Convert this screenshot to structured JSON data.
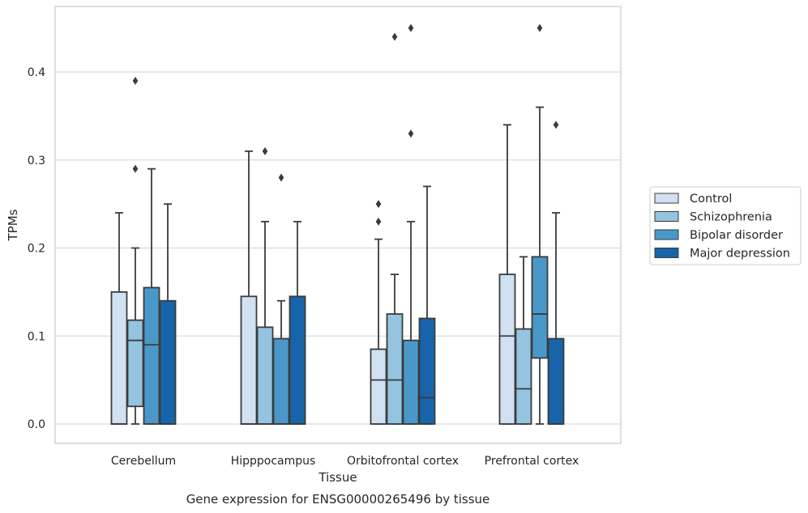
{
  "caption": "Gene expression for ENSG00000265496 by tissue",
  "chart_data": {
    "type": "boxplot",
    "xlabel": "Tissue",
    "ylabel": "TPMs",
    "ylim": [
      -0.022,
      0.475
    ],
    "yticks": [
      0.0,
      0.1,
      0.2,
      0.3,
      0.4
    ],
    "ytick_labels": [
      "0.0",
      "0.1",
      "0.2",
      "0.3",
      "0.4"
    ],
    "grid": "horizontal",
    "legend_position": "right",
    "categories": [
      "Cerebellum",
      "Hipppocampus",
      "Orbitofrontal cortex",
      "Prefrontal cortex"
    ],
    "series": [
      {
        "name": "Control",
        "color": "#d0e1f2",
        "boxes": [
          {
            "min": 0.0,
            "q1": 0.0,
            "median": 0.0,
            "q3": 0.15,
            "max": 0.24,
            "outliers": []
          },
          {
            "min": 0.0,
            "q1": 0.0,
            "median": 0.0,
            "q3": 0.145,
            "max": 0.31,
            "outliers": []
          },
          {
            "min": 0.0,
            "q1": 0.0,
            "median": 0.05,
            "q3": 0.085,
            "max": 0.21,
            "outliers": [
              0.23,
              0.25
            ]
          },
          {
            "min": 0.0,
            "q1": 0.0,
            "median": 0.1,
            "q3": 0.17,
            "max": 0.34,
            "outliers": []
          }
        ]
      },
      {
        "name": "Schizophrenia",
        "color": "#94c4df",
        "boxes": [
          {
            "min": 0.0,
            "q1": 0.02,
            "median": 0.095,
            "q3": 0.118,
            "max": 0.2,
            "outliers": [
              0.29,
              0.39
            ]
          },
          {
            "min": 0.0,
            "q1": 0.0,
            "median": 0.0,
            "q3": 0.11,
            "max": 0.23,
            "outliers": [
              0.31
            ]
          },
          {
            "min": 0.0,
            "q1": 0.0,
            "median": 0.05,
            "q3": 0.125,
            "max": 0.17,
            "outliers": [
              0.44
            ]
          },
          {
            "min": 0.0,
            "q1": 0.0,
            "median": 0.04,
            "q3": 0.108,
            "max": 0.19,
            "outliers": []
          }
        ]
      },
      {
        "name": "Bipolar disorder",
        "color": "#4a98c9",
        "boxes": [
          {
            "min": 0.0,
            "q1": 0.0,
            "median": 0.09,
            "q3": 0.155,
            "max": 0.29,
            "outliers": []
          },
          {
            "min": 0.0,
            "q1": 0.0,
            "median": 0.0,
            "q3": 0.097,
            "max": 0.14,
            "outliers": [
              0.28
            ]
          },
          {
            "min": 0.0,
            "q1": 0.0,
            "median": 0.0,
            "q3": 0.095,
            "max": 0.23,
            "outliers": [
              0.33,
              0.45
            ]
          },
          {
            "min": 0.0,
            "q1": 0.075,
            "median": 0.125,
            "q3": 0.19,
            "max": 0.36,
            "outliers": [
              0.45
            ]
          }
        ]
      },
      {
        "name": "Major depression",
        "color": "#1764ab",
        "boxes": [
          {
            "min": 0.0,
            "q1": 0.0,
            "median": 0.0,
            "q3": 0.14,
            "max": 0.25,
            "outliers": []
          },
          {
            "min": 0.0,
            "q1": 0.0,
            "median": 0.0,
            "q3": 0.145,
            "max": 0.23,
            "outliers": []
          },
          {
            "min": 0.0,
            "q1": 0.0,
            "median": 0.03,
            "q3": 0.12,
            "max": 0.27,
            "outliers": []
          },
          {
            "min": 0.0,
            "q1": 0.0,
            "median": 0.0,
            "q3": 0.097,
            "max": 0.24,
            "outliers": [
              0.34
            ]
          }
        ]
      }
    ]
  }
}
